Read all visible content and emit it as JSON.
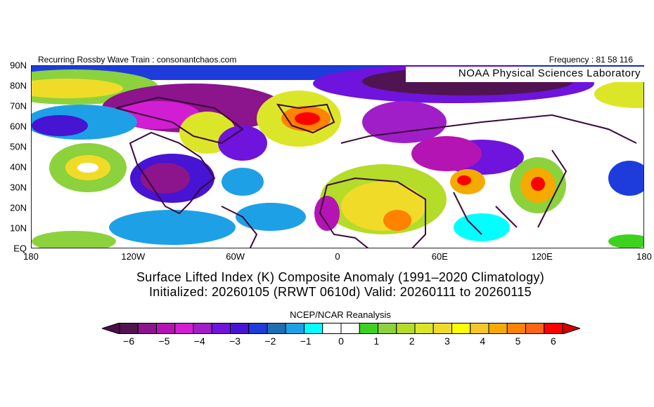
{
  "header": {
    "left": "Recurring Rossby Wave Train : consonantchaos.com",
    "right": "Frequency : 81 58 116"
  },
  "watermark": "NOAA Physical Sciences Laboratory",
  "lat_labels": [
    "90N",
    "80N",
    "70N",
    "60N",
    "50N",
    "40N",
    "30N",
    "20N",
    "10N",
    "EQ"
  ],
  "lon_labels": [
    "180",
    "120W",
    "60W",
    "0",
    "60E",
    "120E",
    "180"
  ],
  "title": {
    "line1": "Surface Lifted Index (K) Composite Anomaly (1991–2020 Climatology)",
    "line2": "Initialized: 20260105 (RRWT 0610d) Valid: 20260111 to 20260115"
  },
  "colorbar": {
    "title": "NCEP/NCAR Reanalysis",
    "tick_labels": [
      "−6",
      "−5",
      "−4",
      "−3",
      "−2",
      "−1",
      "0",
      "1",
      "2",
      "3",
      "4",
      "5",
      "6"
    ],
    "under_color": "#4a0f4a",
    "over_color": "#d20000",
    "colors": [
      "#501450",
      "#8c148c",
      "#b414b4",
      "#d21ed2",
      "#a01ec8",
      "#6e14dc",
      "#4614d2",
      "#1e3cdc",
      "#1e6eb4",
      "#1ea0e6",
      "#00ffff",
      "#ffffff",
      "#ffffff",
      "#3cd21e",
      "#8cd23c",
      "#b4dc28",
      "#dce628",
      "#f0dc28",
      "#ffff00",
      "#f5c828",
      "#f5aa00",
      "#ff8200",
      "#ff6414",
      "#ff0000"
    ]
  }
}
